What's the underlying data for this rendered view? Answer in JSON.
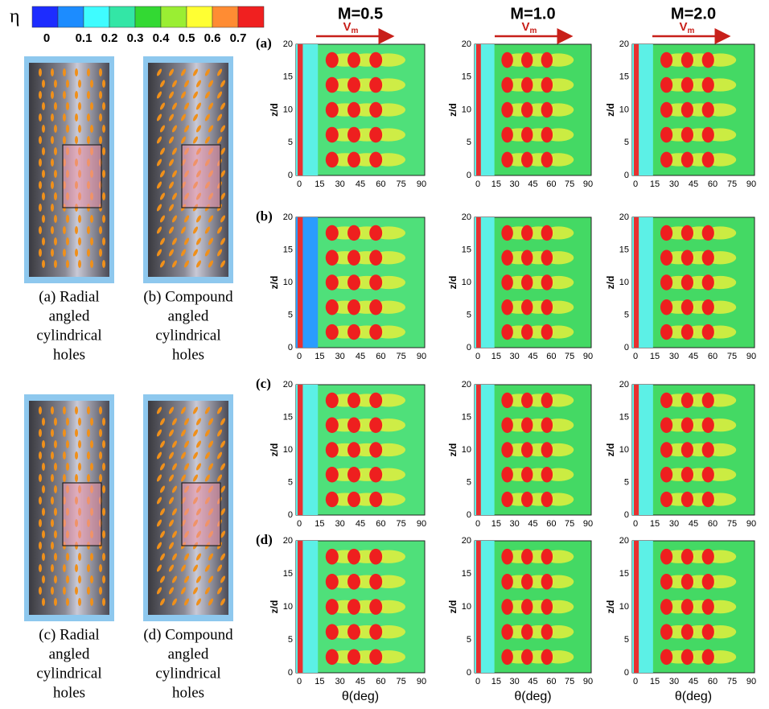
{
  "colorbar": {
    "symbol": "η",
    "labels": [
      "0",
      "0.1",
      "0.2",
      "0.3",
      "0.4",
      "0.5",
      "0.6",
      "0.7"
    ],
    "colors": [
      "#1d2cff",
      "#1c8cff",
      "#3ffcff",
      "#33e6a6",
      "#33d933",
      "#9aee33",
      "#ffff33",
      "#ff8c33",
      "#f02020"
    ]
  },
  "columns": [
    "M=0.5",
    "M=1.0",
    "M=2.0"
  ],
  "velocity": {
    "symbol": "V",
    "subscript": "m"
  },
  "rows": [
    "(a)",
    "(b)",
    "(c)",
    "(d)"
  ],
  "axes": {
    "x_ticks": [
      "0",
      "15",
      "30",
      "45",
      "60",
      "75",
      "90"
    ],
    "y_ticks": [
      "0",
      "5",
      "10",
      "15",
      "20"
    ],
    "y_label": "z/d",
    "x_label": "θ(deg)"
  },
  "geometries": [
    {
      "caption": [
        "(a) Radial",
        "angled",
        "cylindrical",
        "holes"
      ]
    },
    {
      "caption": [
        "(b) Compound",
        "angled",
        "cylindrical",
        "holes"
      ]
    },
    {
      "caption": [
        "(c) Radial",
        "angled",
        "cylindrical",
        "holes"
      ]
    },
    {
      "caption": [
        "(d) Compound",
        "angled",
        "cylindrical",
        "holes"
      ]
    }
  ]
}
